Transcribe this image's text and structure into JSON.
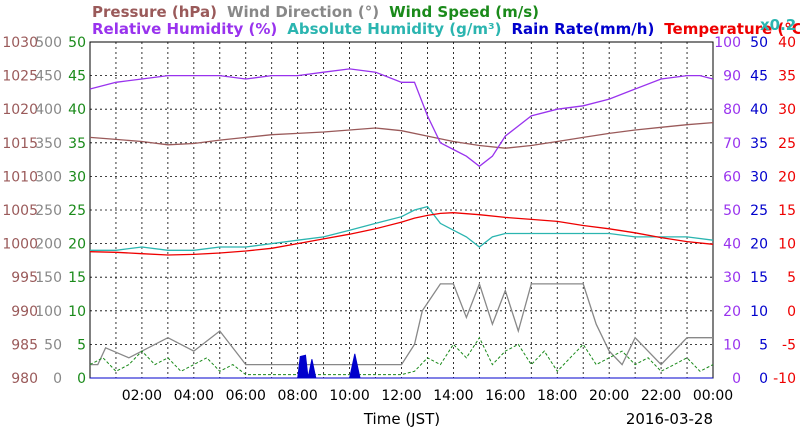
{
  "chart_data": {
    "type": "line",
    "date": "2016-03-28",
    "xlabel": "Time (JST)",
    "x_ticks": [
      "02:00",
      "04:00",
      "06:00",
      "08:00",
      "10:00",
      "12:00",
      "14:00",
      "16:00",
      "18:00",
      "20:00",
      "22:00",
      "00:00"
    ],
    "x_range_hours": [
      0,
      24
    ],
    "grid": true,
    "header": {
      "row1": [
        {
          "text": "Pressure (hPa)",
          "color": "#9a5a5a"
        },
        {
          "text": "Wind Direction (°)",
          "color": "#888888"
        },
        {
          "text": "Wind Speed (m/s)",
          "color": "#1a8a1a"
        }
      ],
      "row2": [
        {
          "text": "Relative Humidity (%)",
          "color": "#9933ee"
        },
        {
          "text": "Absolute Humidity (g/m³)",
          "color": "#2bb5b0"
        },
        {
          "text": "Rain Rate(mm/h)",
          "color": "#0000cc"
        },
        {
          "text": "Temperature (°C)",
          "color": "#ee0000"
        }
      ],
      "multiplier": {
        "text": "x0.2",
        "color": "#2bb5b0"
      }
    },
    "axes": {
      "pressure": {
        "label": "Pressure (hPa)",
        "min": 980,
        "max": 1030,
        "ticks": [
          "980",
          "985",
          "990",
          "995",
          "1000",
          "1005",
          "1010",
          "1015",
          "1020",
          "1025",
          "1030"
        ],
        "color": "#9a5a5a"
      },
      "wind_direction": {
        "label": "Wind Direction (°)",
        "min": 0,
        "max": 500,
        "ticks": [
          "0",
          "50",
          "100",
          "150",
          "200",
          "250",
          "300",
          "350",
          "400",
          "450",
          "500"
        ],
        "color": "#888888"
      },
      "wind_speed": {
        "label": "Wind Speed (m/s)",
        "min": 0,
        "max": 50,
        "ticks": [
          "0",
          "5",
          "10",
          "15",
          "20",
          "25",
          "30",
          "35",
          "40",
          "45",
          "50"
        ],
        "color": "#1a8a1a"
      },
      "relative_humidity": {
        "label": "Relative Humidity (%)",
        "min": 0,
        "max": 100,
        "ticks": [
          "0",
          "10",
          "20",
          "30",
          "40",
          "50",
          "60",
          "70",
          "80",
          "90",
          "100"
        ],
        "color": "#9933ee"
      },
      "rain_rate": {
        "label": "Rain Rate(mm/h)",
        "min": 0,
        "max": 50,
        "ticks": [
          "0",
          "5",
          "10",
          "15",
          "20",
          "25",
          "30",
          "35",
          "40",
          "45",
          "50"
        ],
        "color": "#0000cc"
      },
      "temperature": {
        "label": "Temperature (°C)",
        "min": -10,
        "max": 40,
        "ticks": [
          "-10",
          "-5",
          "0",
          "5",
          "10",
          "15",
          "20",
          "25",
          "30",
          "35",
          "40"
        ],
        "color": "#ee0000"
      }
    },
    "series": [
      {
        "name": "Pressure (hPa)",
        "axis": "pressure",
        "color": "#9a5a5a",
        "x": [
          0,
          1,
          2,
          3,
          4,
          5,
          6,
          7,
          8,
          9,
          10,
          11,
          12,
          13,
          14,
          15,
          16,
          17,
          18,
          19,
          20,
          21,
          22,
          23,
          24
        ],
        "y": [
          1015.8,
          1015.5,
          1015.2,
          1014.7,
          1014.9,
          1015.4,
          1015.8,
          1016.2,
          1016.4,
          1016.6,
          1016.9,
          1017.2,
          1016.8,
          1016.0,
          1015.2,
          1014.6,
          1014.2,
          1014.6,
          1015.2,
          1015.8,
          1016.4,
          1016.9,
          1017.3,
          1017.7,
          1018.0
        ]
      },
      {
        "name": "Relative Humidity (%)",
        "axis": "relative_humidity",
        "color": "#9933ee",
        "x": [
          0,
          1,
          2,
          3,
          4,
          5,
          6,
          7,
          8,
          9,
          10,
          11,
          12,
          12.5,
          13,
          13.5,
          14,
          14.5,
          15,
          15.5,
          16,
          16.5,
          17,
          18,
          19,
          20,
          21,
          22,
          23,
          23.5,
          24
        ],
        "y": [
          86,
          88,
          89,
          90,
          90,
          90,
          89,
          90,
          90,
          91,
          92,
          91,
          88,
          88,
          78,
          70,
          68,
          66,
          63,
          66,
          72,
          75,
          78,
          80,
          81,
          83,
          86,
          89,
          90,
          90,
          89
        ]
      },
      {
        "name": "Absolute Humidity (g/m³)",
        "axis": "relative_humidity",
        "color": "#2bb5b0",
        "x": [
          0,
          1,
          2,
          3,
          4,
          5,
          6,
          7,
          8,
          9,
          10,
          11,
          12,
          12.5,
          13,
          13.5,
          14,
          14.5,
          15,
          15.5,
          16,
          17,
          18,
          19,
          20,
          21,
          22,
          23,
          24
        ],
        "y": [
          38,
          38,
          39,
          38,
          38,
          39,
          39,
          40,
          41,
          42,
          44,
          46,
          48,
          50,
          51,
          46,
          44,
          42,
          39,
          42,
          43,
          43,
          43,
          43,
          43,
          42,
          42,
          42,
          41
        ]
      },
      {
        "name": "Temperature (°C)",
        "axis": "temperature",
        "color": "#ee0000",
        "x": [
          0,
          1,
          2,
          3,
          4,
          5,
          6,
          7,
          8,
          9,
          10,
          11,
          12,
          12.5,
          13,
          13.5,
          14,
          15,
          16,
          17,
          18,
          19,
          20,
          21,
          22,
          23,
          24
        ],
        "y": [
          8.8,
          8.7,
          8.5,
          8.3,
          8.4,
          8.6,
          8.9,
          9.3,
          10.0,
          10.7,
          11.4,
          12.2,
          13.2,
          13.8,
          14.2,
          14.5,
          14.6,
          14.3,
          13.9,
          13.6,
          13.3,
          12.7,
          12.2,
          11.6,
          10.9,
          10.3,
          9.9
        ]
      },
      {
        "name": "Wind Direction (°)",
        "axis": "wind_direction",
        "color": "#888888",
        "x": [
          0,
          0.3,
          0.6,
          1.5,
          3,
          4,
          5,
          5.6,
          6,
          7,
          8,
          9,
          10,
          11,
          12,
          12.5,
          12.8,
          13.5,
          14,
          14.5,
          15,
          15.5,
          16,
          16.5,
          17,
          18,
          19,
          19.5,
          20,
          20.5,
          21,
          22,
          23,
          24
        ],
        "y": [
          20,
          20,
          45,
          30,
          60,
          40,
          70,
          40,
          20,
          20,
          20,
          20,
          20,
          20,
          20,
          50,
          100,
          140,
          140,
          90,
          140,
          80,
          130,
          70,
          140,
          140,
          140,
          80,
          40,
          20,
          60,
          20,
          60,
          60
        ]
      },
      {
        "name": "Wind Speed (m/s)",
        "axis": "wind_speed",
        "color": "#1a8a1a",
        "x": [
          0,
          0.5,
          1,
          1.5,
          2,
          2.5,
          3,
          3.5,
          4,
          4.5,
          5,
          5.5,
          6,
          7,
          8,
          9,
          10,
          11,
          12,
          12.5,
          13,
          13.5,
          14,
          14.5,
          15,
          15.5,
          16,
          16.5,
          17,
          17.5,
          18,
          18.5,
          19,
          19.5,
          20,
          20.5,
          21,
          21.5,
          22,
          22.5,
          23,
          23.5,
          24
        ],
        "y": [
          2,
          3,
          1,
          2,
          4,
          2,
          3,
          1,
          2,
          3,
          1,
          2,
          0.5,
          0.5,
          0.5,
          0.5,
          0.5,
          0.5,
          0.5,
          1,
          3,
          2,
          5,
          3,
          6,
          2,
          4,
          5,
          2,
          4,
          1,
          3,
          5,
          2,
          3,
          4,
          2,
          3,
          1,
          2,
          3,
          1,
          2
        ]
      },
      {
        "name": "Rain Rate(mm/h)",
        "axis": "rain_rate",
        "color": "#0000cc",
        "x": [
          0,
          8.0,
          8.1,
          8.3,
          8.4,
          8.55,
          8.7,
          10.0,
          10.2,
          10.4,
          24
        ],
        "y": [
          0,
          0,
          3.2,
          3.4,
          0,
          2.8,
          0,
          0,
          3.6,
          0,
          0
        ]
      }
    ]
  }
}
